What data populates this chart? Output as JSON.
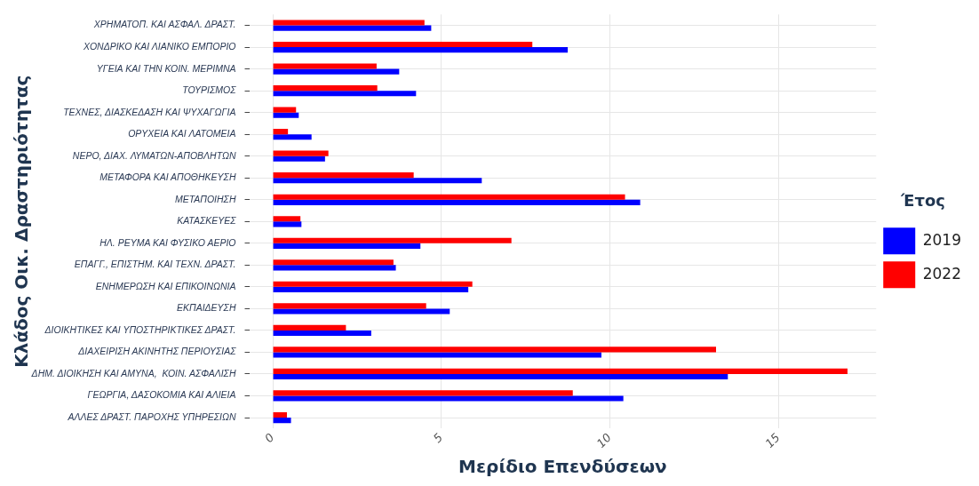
{
  "chart_data": {
    "type": "bar",
    "orientation": "horizontal",
    "xlabel": "Μερίδιο Επενδύσεων",
    "ylabel": "Κλάδος Οικ. Δραστηριότητας",
    "legend_title": "Έτος",
    "legend": "right",
    "grid": true,
    "categories": [
      "ΧΡΗΜΑΤΟΠ. ΚΑΙ ΑΣΦΑΛ. ΔΡΑΣΤ.",
      "ΧΟΝΔΡΙΚΟ ΚΑΙ ΛΙΑΝΙΚΟ ΕΜΠΟΡΙΟ",
      "ΥΓΕΙΑ ΚΑΙ ΤΗΝ ΚΟΙΝ. ΜΕΡΙΜΝΑ",
      "ΤΟΥΡΙΣΜΟΣ",
      "ΤΕΧΝΕΣ, ΔΙΑΣΚΕΔΑΣΗ ΚΑΙ ΨΥΧΑΓΩΓΙΑ",
      "ΟΡΥΧΕΙΑ ΚΑΙ ΛΑΤΟΜΕΙΑ",
      "ΝΕΡΟ, ΔΙΑΧ. ΛΥΜΑΤΩΝ-ΑΠΟΒΛΗΤΩΝ",
      "ΜΕΤΑΦΟΡΑ ΚΑΙ ΑΠΟΘΗΚΕΥΣΗ",
      "ΜΕΤΑΠΟΙΗΣΗ",
      "ΚΑΤΑΣΚΕΥΕΣ",
      "ΗΛ. ΡΕΥΜΑ ΚΑΙ ΦΥΣΙΚΟ ΑΕΡΙΟ",
      "ΕΠΑΓΓ., ΕΠΙΣΤΗΜ. ΚΑΙ ΤΕΧΝ. ΔΡΑΣΤ.",
      "ΕΝΗΜΕΡΩΣΗ ΚΑΙ ΕΠΙΚΟΙΝΩΝΙΑ",
      "ΕΚΠΑΙΔΕΥΣΗ",
      "ΔΙΟΙΚΗΤΙΚΕΣ ΚΑΙ ΥΠΟΣΤΗΡΙΚΤΙΚΕΣ ΔΡΑΣΤ.",
      "ΔΙΑΧΕΙΡΙΣΗ ΑΚΙΝΗΤΗΣ ΠΕΡΙΟΥΣΙΑΣ",
      "ΔΗΜ. ΔΙΟΙΚΗΣΗ ΚΑΙ ΑΜΥΝΑ,  ΚΟΙΝ. ΑΣΦΑΛΙΣΗ",
      "ΓΕΩΡΓΙΑ, ΔΑΣΟΚΟΜΙΑ ΚΑΙ ΑΛΙΕΙΑ",
      "ΑΛΛΕΣ ΔΡΑΣΤ. ΠΑΡΟΧΗΣ ΥΠΗΡΕΣΙΩΝ"
    ],
    "series": [
      {
        "name": "2019",
        "color": "#0000ff",
        "values": [
          4.7,
          8.75,
          3.75,
          4.25,
          0.77,
          1.15,
          1.55,
          6.2,
          10.9,
          0.85,
          4.38,
          3.65,
          5.8,
          5.25,
          2.92,
          9.75,
          13.5,
          10.4,
          0.54
        ]
      },
      {
        "name": "2022",
        "color": "#ff0000",
        "values": [
          4.5,
          7.7,
          3.08,
          3.1,
          0.69,
          0.45,
          1.65,
          4.18,
          10.45,
          0.82,
          7.08,
          3.58,
          5.92,
          4.55,
          2.17,
          13.15,
          17.05,
          8.9,
          0.42
        ]
      }
    ],
    "xlim": [
      -0.7,
      17.9
    ],
    "xticks": [
      0,
      5,
      10,
      15
    ]
  }
}
